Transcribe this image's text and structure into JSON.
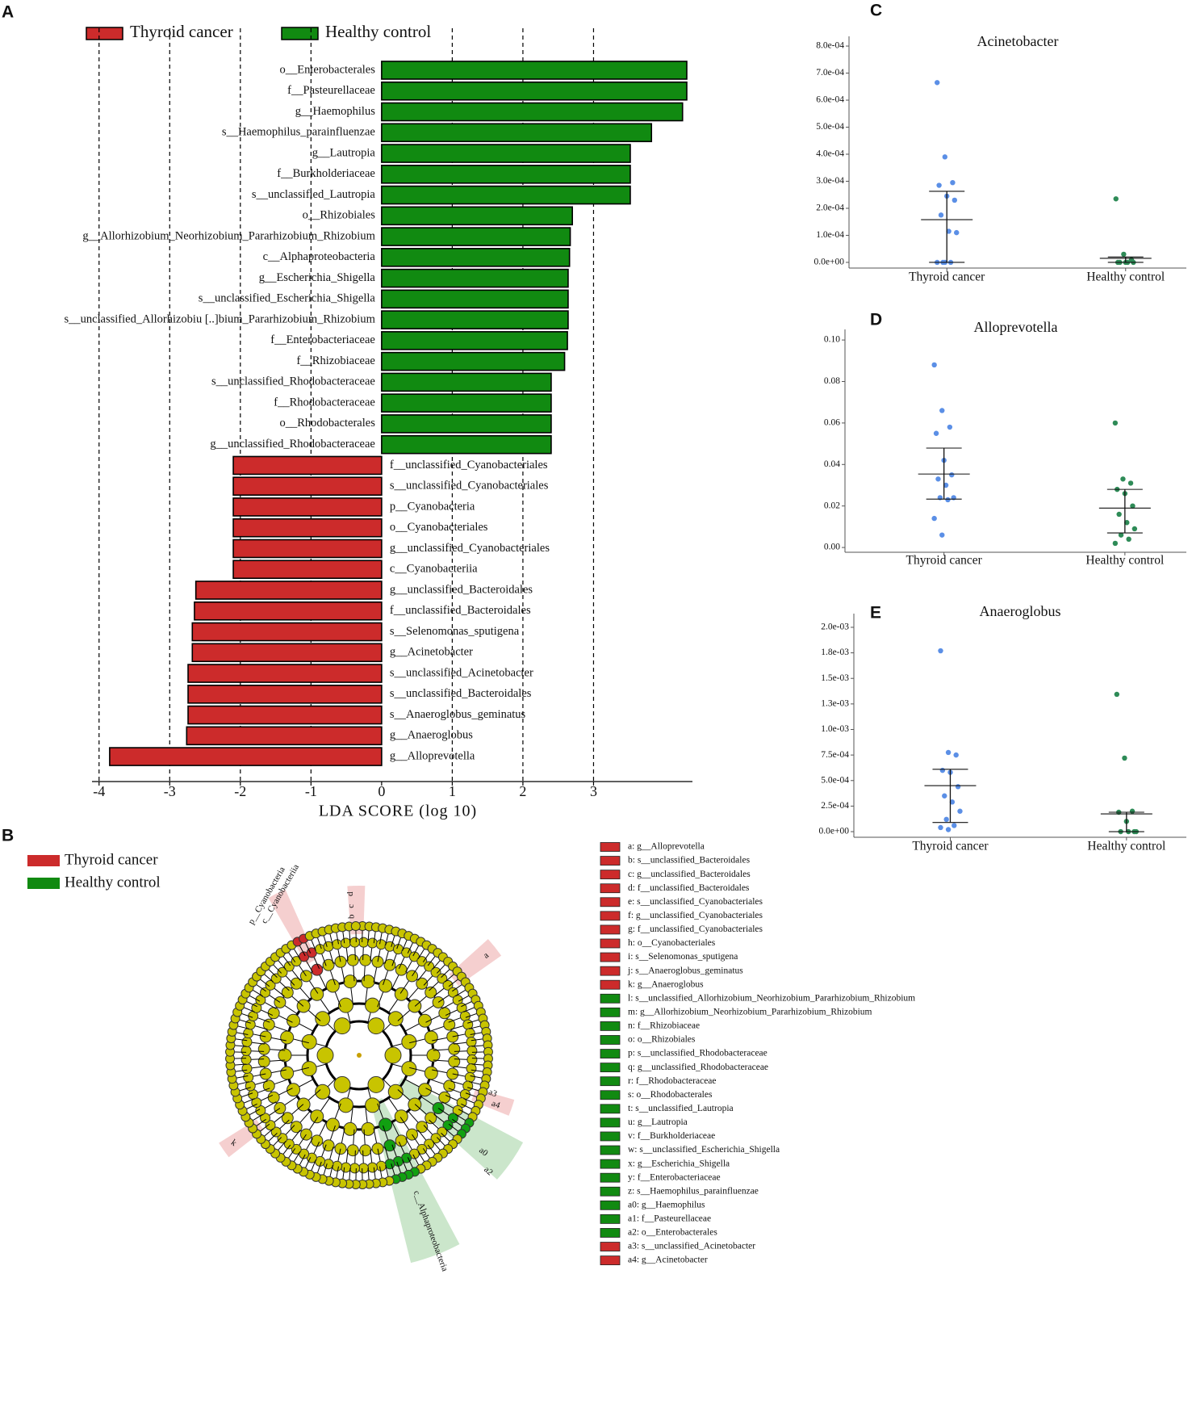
{
  "chart_data": [
    {
      "type": "bar",
      "panel": "A",
      "xlabel": "LDA SCORE (log 10)",
      "xlim": [
        -4.1,
        4.4
      ],
      "xticks": [
        -4,
        -3,
        -2,
        -1,
        0,
        1,
        2,
        3
      ],
      "categories": [
        "o__Enterobacterales",
        "f__Pasteurellaceae",
        "g__Haemophilus",
        "s__Haemophilus_parainfluenzae",
        "g__Lautropia",
        "f__Burkholderiaceae",
        "s__unclassified_Lautropia",
        "o__Rhizobiales",
        "g__Allorhizobium_Neorhizobium_Pararhizobium_Rhizobium",
        "c__Alphaproteobacteria",
        "g__Escherichia_Shigella",
        "s__unclassified_Escherichia_Shigella",
        "s__unclassified_Allorhizobiu [..]bium_Pararhizobium_Rhizobium",
        "f__Enterobacteriaceae",
        "f__Rhizobiaceae",
        "s__unclassified_Rhodobacteraceae",
        "f__Rhodobacteraceae",
        "o__Rhodobacterales",
        "g__unclassified_Rhodobacteraceae",
        "f__unclassified_Cyanobacteriales",
        "s__unclassified_Cyanobacteriales",
        "p__Cyanobacteria",
        "o__Cyanobacteriales",
        "g__unclassified_Cyanobacteriales",
        "c__Cyanobacteriia",
        "g__unclassified_Bacteroidales",
        "f__unclassified_Bacteroidales",
        "s__Selenomonas_sputigena",
        "g__Acinetobacter",
        "s__unclassified_Acinetobacter",
        "s__unclassified_Bacteroidales",
        "s__Anaeroglobus_geminatus",
        "g__Anaeroglobus",
        "g__Alloprevotella"
      ],
      "series": [
        {
          "name": "Thyroid cancer",
          "color": "#cc2b2b",
          "values": [
            null,
            null,
            null,
            null,
            null,
            null,
            null,
            null,
            null,
            null,
            null,
            null,
            null,
            null,
            null,
            null,
            null,
            null,
            null,
            -2.1,
            -2.1,
            -2.1,
            -2.1,
            -2.1,
            -2.1,
            -2.63,
            -2.65,
            -2.68,
            -2.68,
            -2.74,
            -2.74,
            -2.74,
            -2.76,
            -3.85
          ]
        },
        {
          "name": "Healthy control",
          "color": "#118a11",
          "values": [
            4.32,
            4.32,
            4.26,
            3.82,
            3.52,
            3.52,
            3.52,
            2.7,
            2.67,
            2.66,
            2.64,
            2.64,
            2.64,
            2.63,
            2.59,
            2.4,
            2.4,
            2.4,
            2.4,
            null,
            null,
            null,
            null,
            null,
            null,
            null,
            null,
            null,
            null,
            null,
            null,
            null,
            null,
            null
          ]
        }
      ]
    },
    {
      "type": "cladogram",
      "panel": "B",
      "series": [
        {
          "name": "Thyroid cancer",
          "color": "#cc2b2b"
        },
        {
          "name": "Healthy control",
          "color": "#118a11"
        }
      ],
      "clade_labels": [
        "p__Cyanobacteria",
        "c__Cyanobacteriia",
        "c__Alphaproteobacteria",
        "d",
        "c",
        "b",
        "a",
        "k",
        "a4",
        "a3",
        "a0",
        "a2"
      ],
      "legend": [
        {
          "label": "a: g__Alloprevotella",
          "color": "#cc2b2b"
        },
        {
          "label": "b: s__unclassified_Bacteroidales",
          "color": "#cc2b2b"
        },
        {
          "label": "c: g__unclassified_Bacteroidales",
          "color": "#cc2b2b"
        },
        {
          "label": "d: f__unclassified_Bacteroidales",
          "color": "#cc2b2b"
        },
        {
          "label": "e: s__unclassified_Cyanobacteriales",
          "color": "#cc2b2b"
        },
        {
          "label": "f: g__unclassified_Cyanobacteriales",
          "color": "#cc2b2b"
        },
        {
          "label": "g: f__unclassified_Cyanobacteriales",
          "color": "#cc2b2b"
        },
        {
          "label": "h: o__Cyanobacteriales",
          "color": "#cc2b2b"
        },
        {
          "label": "i: s__Selenomonas_sputigena",
          "color": "#cc2b2b"
        },
        {
          "label": "j: s__Anaeroglobus_geminatus",
          "color": "#cc2b2b"
        },
        {
          "label": "k: g__Anaeroglobus",
          "color": "#cc2b2b"
        },
        {
          "label": "l: s__unclassified_Allorhizobium_Neorhizobium_Pararhizobium_Rhizobium",
          "color": "#118a11"
        },
        {
          "label": "m: g__Allorhizobium_Neorhizobium_Pararhizobium_Rhizobium",
          "color": "#118a11"
        },
        {
          "label": "n: f__Rhizobiaceae",
          "color": "#118a11"
        },
        {
          "label": "o: o__Rhizobiales",
          "color": "#118a11"
        },
        {
          "label": "p: s__unclassified_Rhodobacteraceae",
          "color": "#118a11"
        },
        {
          "label": "q: g__unclassified_Rhodobacteraceae",
          "color": "#118a11"
        },
        {
          "label": "r: f__Rhodobacteraceae",
          "color": "#118a11"
        },
        {
          "label": "s: o__Rhodobacterales",
          "color": "#118a11"
        },
        {
          "label": "t: s__unclassified_Lautropia",
          "color": "#118a11"
        },
        {
          "label": "u: g__Lautropia",
          "color": "#118a11"
        },
        {
          "label": "v: f__Burkholderiaceae",
          "color": "#118a11"
        },
        {
          "label": "w: s__unclassified_Escherichia_Shigella",
          "color": "#118a11"
        },
        {
          "label": "x: g__Escherichia_Shigella",
          "color": "#118a11"
        },
        {
          "label": "y: f__Enterobacteriaceae",
          "color": "#118a11"
        },
        {
          "label": "z: s__Haemophilus_parainfluenzae",
          "color": "#118a11"
        },
        {
          "label": "a0: g__Haemophilus",
          "color": "#118a11"
        },
        {
          "label": "a1: f__Pasteurellaceae",
          "color": "#118a11"
        },
        {
          "label": "a2: o__Enterobacterales",
          "color": "#118a11"
        },
        {
          "label": "a3: s__unclassified_Acinetobacter",
          "color": "#cc2b2b"
        },
        {
          "label": "a4: g__Acinetobacter",
          "color": "#cc2b2b"
        }
      ]
    },
    {
      "type": "dotplot",
      "panel": "C",
      "title": "Acinetobacter",
      "ylim": [
        -2.1e-05,
        0.000836
      ],
      "yticks": [
        {
          "value": 0,
          "label": "0.0e+00"
        },
        {
          "value": 0.0001,
          "label": "1.0e-04"
        },
        {
          "value": 0.0002,
          "label": "2.0e-04"
        },
        {
          "value": 0.0003,
          "label": "3.0e-04"
        },
        {
          "value": 0.0004,
          "label": "4.0e-04"
        },
        {
          "value": 0.0005,
          "label": "5.0e-04"
        },
        {
          "value": 0.0006,
          "label": "6.0e-04"
        },
        {
          "value": 0.0007,
          "label": "7.0e-04"
        },
        {
          "value": 0.0008,
          "label": "8.0e-04"
        }
      ],
      "groups": [
        {
          "name": "Thyroid cancer",
          "color": "#5b8fe6",
          "values": [
            0.000665,
            0.00039,
            0.000295,
            0.000285,
            0.000245,
            0.00023,
            0.000175,
            0.000115,
            0.00011,
            0,
            0,
            0,
            0
          ],
          "center": 0.000158,
          "lower": 0,
          "upper": 0.000263
        },
        {
          "name": "Healthy control",
          "color": "#2e8b57",
          "values": [
            0.000235,
            3e-05,
            1e-05,
            0,
            0,
            0,
            0,
            0
          ],
          "center": 1.5e-05,
          "lower": 0,
          "upper": 2e-05
        }
      ]
    },
    {
      "type": "dotplot",
      "panel": "D",
      "title": "Alloprevotella",
      "ylim": [
        -0.0023,
        0.1051
      ],
      "yticks": [
        {
          "value": 0,
          "label": "0.00"
        },
        {
          "value": 0.02,
          "label": "0.02"
        },
        {
          "value": 0.04,
          "label": "0.04"
        },
        {
          "value": 0.06,
          "label": "0.06"
        },
        {
          "value": 0.08,
          "label": "0.08"
        },
        {
          "value": 0.1,
          "label": "0.10"
        }
      ],
      "groups": [
        {
          "name": "Thyroid cancer",
          "color": "#5b8fe6",
          "values": [
            0.088,
            0.066,
            0.058,
            0.055,
            0.042,
            0.035,
            0.033,
            0.03,
            0.024,
            0.024,
            0.023,
            0.014,
            0.006
          ],
          "center": 0.0354,
          "lower": 0.0233,
          "upper": 0.0479
        },
        {
          "name": "Healthy control",
          "color": "#2e8b57",
          "values": [
            0.06,
            0.033,
            0.031,
            0.028,
            0.026,
            0.02,
            0.016,
            0.012,
            0.009,
            0.006,
            0.004,
            0.002
          ],
          "center": 0.019,
          "lower": 0.007,
          "upper": 0.028
        }
      ]
    },
    {
      "type": "dotplot",
      "panel": "E",
      "title": "Anaeroglobus",
      "ylim": [
        -5.5e-05,
        0.002134
      ],
      "yticks": [
        {
          "value": 0,
          "label": "0.0e+00"
        },
        {
          "value": 0.00025,
          "label": "2.5e-04"
        },
        {
          "value": 0.0005,
          "label": "5.0e-04"
        },
        {
          "value": 0.00075,
          "label": "7.5e-04"
        },
        {
          "value": 0.001,
          "label": "1.0e-03"
        },
        {
          "value": 0.00125,
          "label": "1.3e-03"
        },
        {
          "value": 0.0015,
          "label": "1.5e-03"
        },
        {
          "value": 0.00175,
          "label": "1.8e-03"
        },
        {
          "value": 0.002,
          "label": "2.0e-03"
        }
      ],
      "groups": [
        {
          "name": "Thyroid cancer",
          "color": "#5b8fe6",
          "values": [
            0.00177,
            0.000775,
            0.00075,
            0.0006,
            0.00058,
            0.00044,
            0.00035,
            0.00029,
            0.0002,
            0.00012,
            6e-05,
            4e-05,
            2e-05
          ],
          "center": 0.00045,
          "lower": 9e-05,
          "upper": 0.00061
        },
        {
          "name": "Healthy control",
          "color": "#2e8b57",
          "values": [
            0.001344,
            0.00072,
            0.0002,
            0.00019,
            0.0001,
            0,
            0,
            0,
            0
          ],
          "center": 0.000174,
          "lower": 0,
          "upper": 0.00019
        }
      ]
    }
  ]
}
